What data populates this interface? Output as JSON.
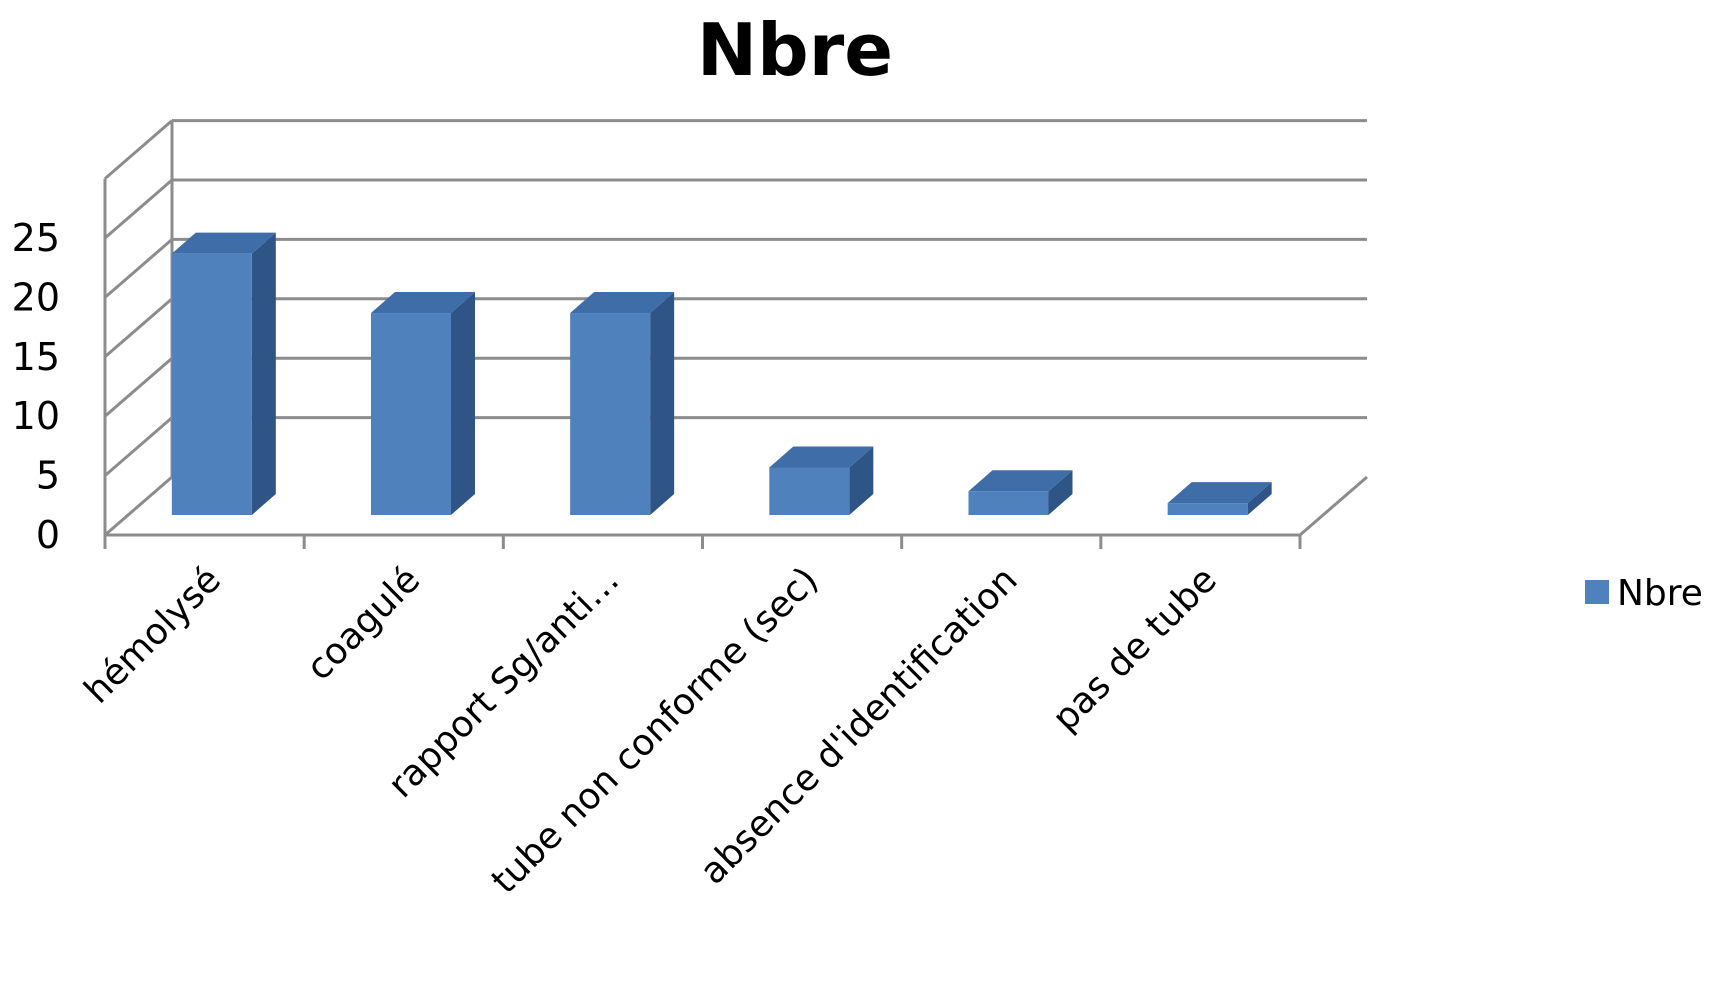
{
  "chart_data": {
    "type": "bar",
    "title": "Nbre",
    "categories": [
      "hémolysé",
      "coagulé",
      "rapport Sg/anti…",
      "tube non conforme (sec)",
      "absence d'identification",
      "pas de tube"
    ],
    "series": [
      {
        "name": "Nbre",
        "values": [
          22,
          17,
          17,
          4,
          2,
          1
        ]
      }
    ],
    "ylim": [
      0,
      25
    ],
    "yticks": [
      0,
      5,
      10,
      15,
      20,
      25
    ],
    "grid": true,
    "legend": "right",
    "colors": {
      "bar_front": "#4F81BD",
      "bar_top": "#3F6DA8",
      "bar_side": "#2E5586",
      "grid": "#8C8C8C"
    }
  }
}
